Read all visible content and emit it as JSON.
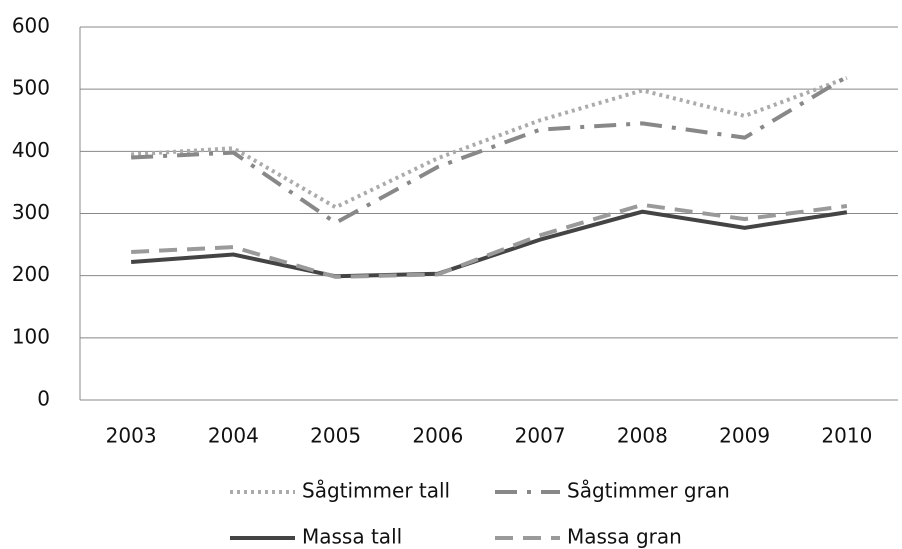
{
  "chart_data": {
    "type": "line",
    "categories": [
      "2003",
      "2004",
      "2005",
      "2006",
      "2007",
      "2008",
      "2009",
      "2010"
    ],
    "series": [
      {
        "name": "Sågtimmer tall",
        "color": "#ababab",
        "dash": "3 4",
        "values": [
          395,
          405,
          310,
          389,
          450,
          498,
          457,
          518
        ]
      },
      {
        "name": "Sågtimmer gran",
        "color": "#888888",
        "dash": "22 10 4 10",
        "values": [
          390,
          398,
          285,
          375,
          435,
          445,
          422,
          520
        ]
      },
      {
        "name": "Massa tall",
        "color": "#444444",
        "dash": "none",
        "values": [
          222,
          234,
          199,
          203,
          258,
          303,
          277,
          302
        ]
      },
      {
        "name": "Massa gran",
        "color": "#9a9a9a",
        "dash": "18 10",
        "values": [
          238,
          246,
          198,
          202,
          265,
          314,
          291,
          312
        ]
      }
    ],
    "ylim": [
      0,
      600
    ],
    "yticks": [
      0,
      100,
      200,
      300,
      400,
      500,
      600
    ],
    "grid": true
  }
}
